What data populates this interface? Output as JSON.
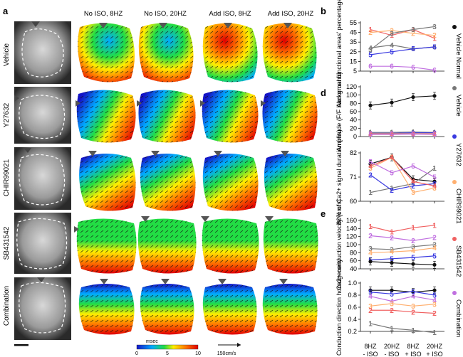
{
  "figure": {
    "panel_labels": [
      "a",
      "b",
      "d",
      "e"
    ],
    "columns": [
      "No ISO, 8HZ",
      "No ISO, 20HZ",
      "Add ISO, 8HZ",
      "Add ISO, 20HZ"
    ],
    "rows": [
      "Vehicle",
      "Y27632",
      "CHIR99021",
      "SB431542",
      "Combination"
    ],
    "colorbar": {
      "unit": "msec",
      "ticks": [
        "0",
        "5",
        "10"
      ],
      "colors": [
        "#1414c8",
        "#00aaff",
        "#22dd44",
        "#ffee00",
        "#ff7700",
        "#e00000"
      ]
    },
    "arrow_scale": "150cm/s",
    "x_axis": {
      "ticks": [
        "8HZ",
        "20HZ",
        "8HZ",
        "20HZ"
      ],
      "groups": [
        "- ISO",
        "- ISO",
        "+ ISO",
        "+ ISO"
      ]
    },
    "legend": [
      {
        "label": "Vehicle Normal",
        "color": "#111111"
      },
      {
        "label": "Vehicle",
        "color": "#777777"
      },
      {
        "label": "Y27632",
        "color": "#3a3ae0"
      },
      {
        "label": "CHIR99021",
        "color": "#ffb070"
      },
      {
        "label": "SB431542",
        "color": "#f06060"
      },
      {
        "label": "Combination",
        "color": "#c070e0"
      }
    ]
  },
  "chart_data": [
    {
      "type": "line",
      "ylabel": "Abnormal functional areas' percentage (%)",
      "ylim": [
        5,
        55
      ],
      "yticks": [
        "5",
        "15",
        "25",
        "35",
        "45",
        "55"
      ],
      "x": [
        "8HZ",
        "20HZ",
        "8HZ",
        "20HZ"
      ],
      "series": [
        {
          "marker": "1",
          "color": "#f06060",
          "values": [
            48,
            42,
            48,
            39
          ]
        },
        {
          "marker": "2",
          "color": "#ffb070",
          "values": [
            45,
            47,
            44,
            42
          ]
        },
        {
          "marker": "3",
          "color": "#777777",
          "values": [
            27,
            44,
            48,
            51
          ]
        },
        {
          "marker": "4",
          "color": "#777777",
          "values": [
            29,
            32,
            28,
            30
          ]
        },
        {
          "marker": "5",
          "color": "#3a3ae0",
          "values": [
            22,
            25,
            28,
            30
          ]
        },
        {
          "marker": "6",
          "color": "#c070e0",
          "values": [
            10,
            10,
            9,
            6
          ]
        }
      ]
    },
    {
      "type": "line",
      "ylabel": "Amplitude (F/F background)",
      "ylim": [
        0,
        120
      ],
      "yticks": [
        "0",
        "20",
        "40",
        "60",
        "80",
        "100",
        "120"
      ],
      "x": [
        "8HZ",
        "20HZ",
        "8HZ",
        "20HZ"
      ],
      "series": [
        {
          "marker": "",
          "color": "#111111",
          "values": [
            75,
            82,
            95,
            98
          ]
        },
        {
          "marker": "1",
          "color": "#777777",
          "values": [
            10,
            10,
            11,
            10
          ]
        },
        {
          "marker": "2",
          "color": "#3a3ae0",
          "values": [
            8,
            8,
            9,
            9
          ]
        },
        {
          "marker": "3",
          "color": "#ffb070",
          "values": [
            7,
            7,
            7,
            7
          ]
        },
        {
          "marker": "4",
          "color": "#f06060",
          "values": [
            6,
            6,
            6,
            6
          ]
        },
        {
          "marker": "5",
          "color": "#c070e0",
          "values": [
            5,
            5,
            6,
            5
          ]
        }
      ]
    },
    {
      "type": "line",
      "ylabel": "80% of Ca2+ signal duration (ms)",
      "ylim": [
        60,
        82
      ],
      "yticks": [
        "60",
        "71",
        "82"
      ],
      "x": [
        "8HZ",
        "20HZ",
        "8HZ",
        "20HZ"
      ],
      "series": [
        {
          "marker": "",
          "color": "#111111",
          "values": [
            77,
            80,
            70,
            69
          ]
        },
        {
          "marker": "1",
          "color": "#777777",
          "values": [
            64,
            66,
            68,
            75
          ]
        },
        {
          "marker": "2",
          "color": "#3a3ae0",
          "values": [
            72,
            65,
            67,
            68
          ]
        },
        {
          "marker": "3",
          "color": "#ffb070",
          "values": [
            75,
            80,
            64,
            66
          ]
        },
        {
          "marker": "4",
          "color": "#f06060",
          "values": [
            76,
            80,
            69,
            67
          ]
        },
        {
          "marker": "5",
          "color": "#c070e0",
          "values": [
            78,
            73,
            76,
            71
          ]
        }
      ]
    },
    {
      "type": "line",
      "ylabel": "Ca2+ conduction velocity (cm/s)",
      "ylim": [
        40,
        160
      ],
      "yticks": [
        "40",
        "60",
        "80",
        "100",
        "120",
        "140",
        "160"
      ],
      "x": [
        "8HZ",
        "20HZ",
        "8HZ",
        "20HZ"
      ],
      "series": [
        {
          "marker": "1",
          "color": "#f06060",
          "values": [
            145,
            132,
            142,
            148
          ]
        },
        {
          "marker": "2",
          "color": "#c070e0",
          "values": [
            122,
            117,
            110,
            118
          ]
        },
        {
          "marker": "3",
          "color": "#777777",
          "values": [
            90,
            88,
            95,
            100
          ]
        },
        {
          "marker": "4",
          "color": "#ffb070",
          "values": [
            80,
            82,
            85,
            92
          ]
        },
        {
          "marker": "5",
          "color": "#3a3ae0",
          "values": [
            62,
            65,
            68,
            72
          ]
        },
        {
          "marker": "",
          "color": "#111111",
          "values": [
            58,
            55,
            52,
            50
          ]
        }
      ]
    },
    {
      "type": "line",
      "ylabel": "Conduction direction homogeneity",
      "ylim": [
        0.2,
        1.0
      ],
      "yticks": [
        "0.2",
        "0.4",
        "0.6",
        "0.8",
        "1.0"
      ],
      "x": [
        "8HZ",
        "20HZ",
        "8HZ",
        "20HZ"
      ],
      "series": [
        {
          "marker": "",
          "color": "#111111",
          "values": [
            0.88,
            0.88,
            0.85,
            0.88
          ]
        },
        {
          "marker": "5",
          "color": "#3a3ae0",
          "values": [
            0.85,
            0.82,
            0.86,
            0.8
          ]
        },
        {
          "marker": "4",
          "color": "#c070e0",
          "values": [
            0.78,
            0.7,
            0.78,
            0.72
          ]
        },
        {
          "marker": "3",
          "color": "#ffb070",
          "values": [
            0.62,
            0.66,
            0.62,
            0.65
          ]
        },
        {
          "marker": "2",
          "color": "#f06060",
          "values": [
            0.55,
            0.55,
            0.52,
            0.5
          ]
        },
        {
          "marker": "1",
          "color": "#777777",
          "values": [
            0.33,
            0.25,
            0.22,
            0.18
          ]
        }
      ]
    }
  ]
}
